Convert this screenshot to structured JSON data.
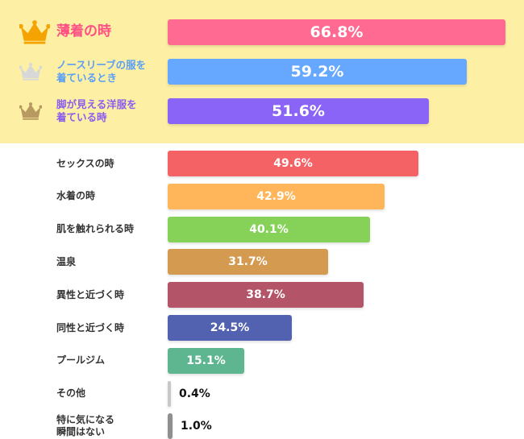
{
  "chart_data": {
    "type": "bar",
    "orientation": "horizontal",
    "title": "",
    "xlabel": "",
    "ylabel": "",
    "xlim": [
      0,
      100
    ],
    "grid": false,
    "categories": [
      "薄着の時",
      "ノースリーブの服を着ているとき",
      "脚が見える洋服を着ている時",
      "セックスの時",
      "水着の時",
      "肌を触れられる時",
      "温泉",
      "異性と近づく時",
      "同性と近づく時",
      "プールジム",
      "その他",
      "特に気になる瞬間はない"
    ],
    "values": [
      66.8,
      59.2,
      51.6,
      49.6,
      42.9,
      40.1,
      31.7,
      38.7,
      24.5,
      15.1,
      0.4,
      1.0
    ],
    "value_labels": [
      "66.8%",
      "59.2%",
      "51.6%",
      "49.6%",
      "42.9%",
      "40.1%",
      "31.7%",
      "38.7%",
      "24.5%",
      "15.1%",
      "0.4%",
      "1.0%"
    ],
    "label_lines": [
      [
        "薄着の時"
      ],
      [
        "ノースリーブの服を",
        "着ているとき"
      ],
      [
        "脚が見える洋服を",
        "着ている時"
      ],
      [
        "セックスの時"
      ],
      [
        "水着の時"
      ],
      [
        "肌を触れられる時"
      ],
      [
        "温泉"
      ],
      [
        "異性と近づく時"
      ],
      [
        "同性と近づく時"
      ],
      [
        "プールジム"
      ],
      [
        "その他"
      ],
      [
        "特に気になる",
        "瞬間はない"
      ]
    ],
    "bar_colors": [
      "#ff6a93",
      "#66a8ff",
      "#8a63f7",
      "#f56265",
      "#ffb65a",
      "#86d259",
      "#d49a4f",
      "#b35468",
      "#5362b0",
      "#5eb690",
      "#c8c8c8",
      "#8f8f8f"
    ],
    "label_colors": [
      "#ff4f84",
      "#5a9ef6",
      "#8a5cf0",
      "#333333",
      "#333333",
      "#333333",
      "#333333",
      "#333333",
      "#333333",
      "#333333",
      "#333333",
      "#333333"
    ],
    "ranking_icons": [
      "crown-gold-icon",
      "crown-silver-icon",
      "crown-bronze-icon"
    ],
    "crown_colors": [
      "#f5a300",
      "#d8d8d8",
      "#b89a60"
    ]
  }
}
